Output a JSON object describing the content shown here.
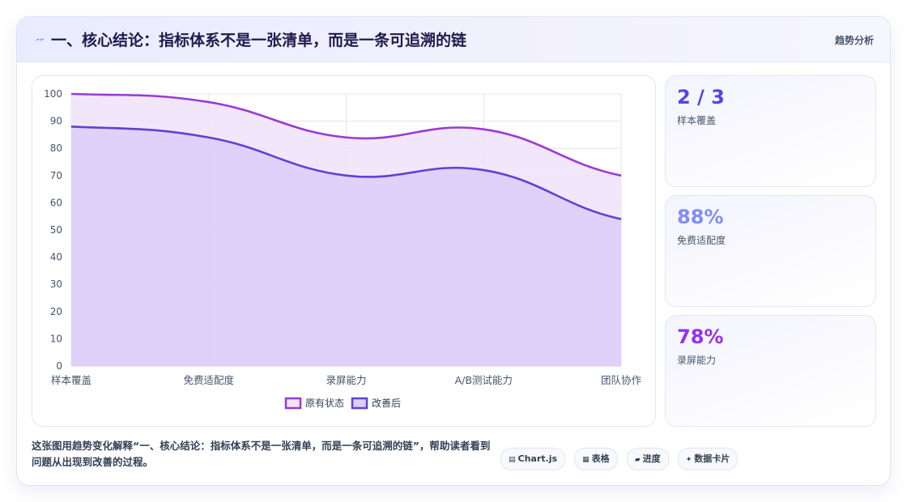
{
  "header": {
    "title": "一、核心结论：指标体系不是一张清单，而是一条可追溯的链",
    "right_label": "趋势分析",
    "icon": "lightning-icon"
  },
  "chart_data": {
    "type": "area",
    "categories": [
      "样本覆盖",
      "免费适配度",
      "录屏能力",
      "A/B测试能力",
      "团队协作"
    ],
    "series": [
      {
        "name": "原有状态",
        "values": [
          100,
          97,
          84,
          87,
          70
        ],
        "color": "#9b3ad6",
        "fill": "#f0e2fa"
      },
      {
        "name": "改善后",
        "values": [
          88,
          84,
          70,
          72,
          54
        ],
        "color": "#5b43d6",
        "fill": "#dccdf8"
      }
    ],
    "ylim": [
      0,
      100
    ],
    "yticks": [
      0,
      10,
      20,
      30,
      40,
      50,
      60,
      70,
      80,
      90,
      100
    ],
    "grid": true,
    "legend": "bottom",
    "smooth": true
  },
  "stats": [
    {
      "value": "2 / 3",
      "label": "样本覆盖",
      "color": "#4f46e5"
    },
    {
      "value": "88%",
      "label": "免费适配度",
      "color": "#818cf8"
    },
    {
      "value": "78%",
      "label": "录屏能力",
      "color": "#9333ea"
    }
  ],
  "footer": {
    "description": "这张图用趋势变化解释“一、核心结论：指标体系不是一张清单，而是一条可追溯的链”，帮助读者看到问题从出现到改善的过程。",
    "tags": [
      {
        "icon": "chart-icon",
        "glyph": "▤",
        "label": "Chart.js"
      },
      {
        "icon": "table-icon",
        "glyph": "▦",
        "label": "表格"
      },
      {
        "icon": "progress-icon",
        "glyph": "▰",
        "label": "进度"
      },
      {
        "icon": "sparkle-icon",
        "glyph": "✦",
        "label": "数据卡片"
      }
    ]
  }
}
